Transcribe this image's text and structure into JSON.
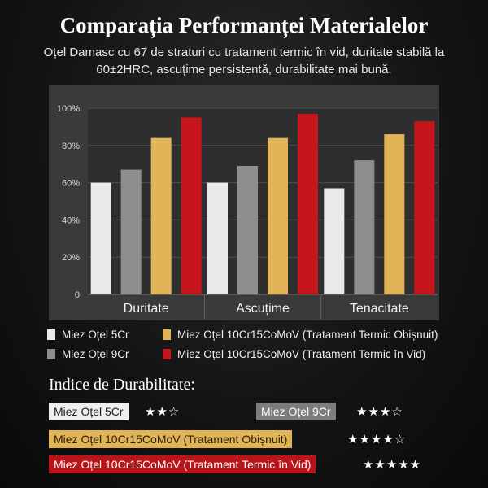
{
  "title": "Comparația Performanței Materialelor",
  "subtitle": "Oțel Damasc cu 67 de straturi cu tratament termic în vid, duritate stabilă la 60±2HRC, ascuțime persistentă, durabilitate mai bună.",
  "colors": {
    "5Cr": "#eaeaea",
    "9Cr": "#8e8e8e",
    "10Cr_obisnuit": "#e0b457",
    "10Cr_vid": "#c4161c"
  },
  "chart_data": {
    "type": "bar",
    "categories": [
      "Duritate",
      "Ascuțime",
      "Tenacitate"
    ],
    "series": [
      {
        "name": "Miez Oțel 5Cr",
        "values": [
          60,
          60,
          57
        ]
      },
      {
        "name": "Miez Oțel 9Cr",
        "values": [
          67,
          69,
          72
        ]
      },
      {
        "name": "Miez Oțel 10Cr15CoMoV (Tratament Termic Obișnuit)",
        "values": [
          84,
          84,
          86
        ]
      },
      {
        "name": "Miez Oțel 10Cr15CoMoV (Tratament Termic în Vid)",
        "values": [
          95,
          97,
          93
        ]
      }
    ],
    "ylim": [
      0,
      100
    ],
    "yticks": [
      "0",
      "20%",
      "40%",
      "60%",
      "80%",
      "100%"
    ],
    "grid": true,
    "legend_position": "bottom"
  },
  "durability": {
    "title": "Indice de Durabilitate:",
    "items": [
      {
        "label": "Miez Oțel 5Cr",
        "stars": "★★☆"
      },
      {
        "label": "Miez Oțel 9Cr",
        "stars": "★★★☆"
      },
      {
        "label": "Miez Oțel 10Cr15CoMoV (Tratament Obișnuit)",
        "stars": "★★★★☆"
      },
      {
        "label": "Miez Oțel 10Cr15CoMoV (Tratament Termic în Vid)",
        "stars": "★★★★★"
      }
    ]
  }
}
